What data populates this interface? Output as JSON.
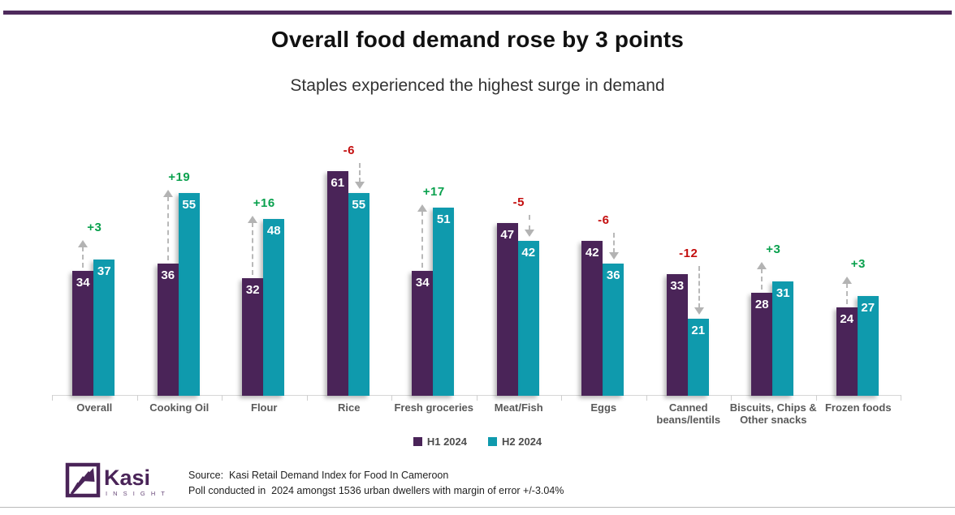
{
  "header": {
    "title": "Overall food demand rose by 3 points",
    "subtitle": "Staples experienced the highest surge in demand"
  },
  "chart_data": {
    "type": "bar",
    "title": "Overall food demand rose by 3 points",
    "subtitle": "Staples experienced the highest surge in demand",
    "categories": [
      "Overall",
      "Cooking Oil",
      "Flour",
      "Rice",
      "Fresh groceries",
      "Meat/Fish",
      "Eggs",
      "Canned\nbeans/lentils",
      "Biscuits, Chips &\nOther snacks",
      "Frozen foods"
    ],
    "series": [
      {
        "name": "H1 2024",
        "color": "#4a2458",
        "values": [
          34,
          36,
          32,
          61,
          34,
          47,
          42,
          33,
          28,
          24
        ]
      },
      {
        "name": "H2 2024",
        "color": "#0f9aad",
        "values": [
          37,
          55,
          48,
          55,
          51,
          42,
          36,
          21,
          31,
          27
        ]
      }
    ],
    "deltas": [
      3,
      19,
      16,
      -6,
      17,
      -5,
      -6,
      -12,
      3,
      3
    ],
    "delta_positive_color": "#0aa14e",
    "delta_negative_color": "#c40f0f",
    "arrow_color": "#b9b9b9",
    "ylim": [
      0,
      65
    ],
    "grid": false,
    "legend_position": "bottom",
    "xlabel": "",
    "ylabel": ""
  },
  "legend": {
    "items": [
      {
        "label": "H1 2024",
        "color": "#4a2458"
      },
      {
        "label": "H2 2024",
        "color": "#0f9aad"
      }
    ]
  },
  "footer": {
    "brand": "Kasi",
    "brand_sub": "I N S I G H T",
    "source_line1": "Source:  Kasi Retail Demand Index for Food In Cameroon",
    "source_line2": "Poll conducted in  2024 amongst 1536 urban dwellers with margin of error +/-3.04%"
  },
  "theme": {
    "top_rule_color": "#4e2a5c",
    "bottom_rule_color": "#bababa",
    "brand_purple": "#4a2458"
  }
}
